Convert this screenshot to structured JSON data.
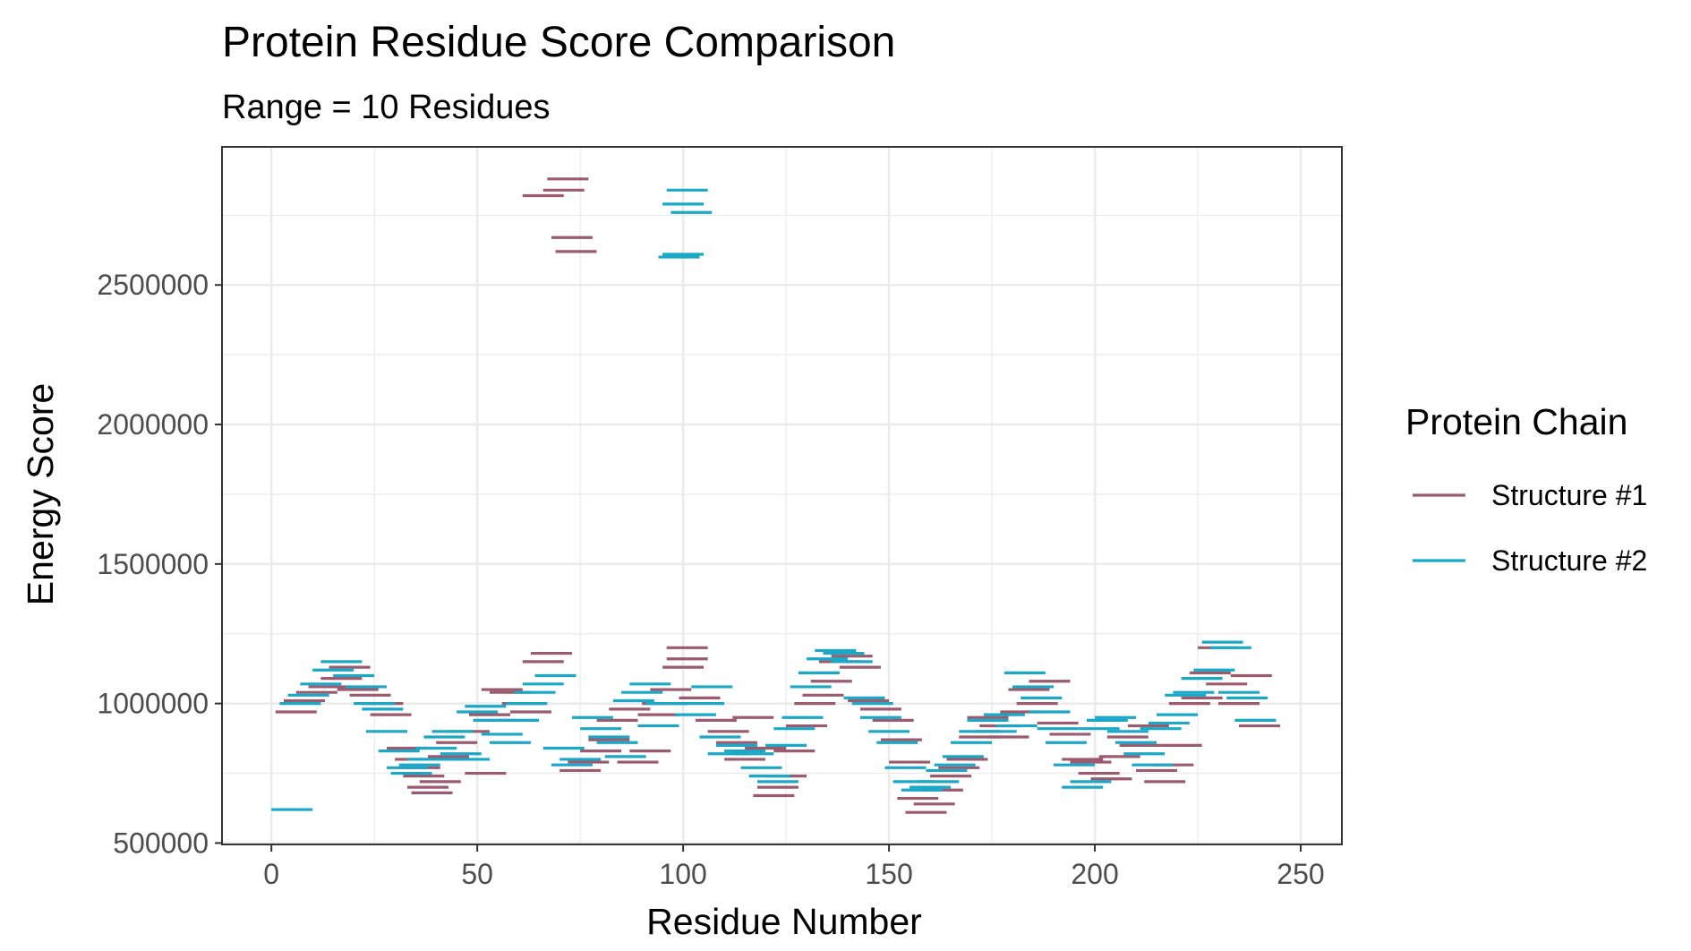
{
  "chart_data": {
    "type": "segment",
    "title": "Protein Residue Score Comparison",
    "subtitle": "Range = 10 Residues",
    "xlabel": "Residue Number",
    "ylabel": "Energy Score",
    "xlim": [
      -12,
      260
    ],
    "ylim": [
      495000,
      2995000
    ],
    "xticks": [
      0,
      50,
      100,
      150,
      200,
      250
    ],
    "xtick_labels": [
      "0",
      "50",
      "100",
      "150",
      "200",
      "250"
    ],
    "yticks": [
      500000,
      1000000,
      1500000,
      2000000,
      2500000
    ],
    "ytick_labels": [
      "500000",
      "1000000",
      "1500000",
      "2000000",
      "2500000"
    ],
    "grid": true,
    "legend": {
      "title": "Protein Chain",
      "position": "right"
    },
    "series": [
      {
        "name": "Structure #1",
        "color": "#9b5a6e",
        "segments": [
          [
            1,
            11,
            970000
          ],
          [
            3,
            13,
            1010000
          ],
          [
            6,
            16,
            1040000
          ],
          [
            9,
            19,
            1060000
          ],
          [
            12,
            22,
            1090000
          ],
          [
            14,
            24,
            1130000
          ],
          [
            16,
            26,
            1050000
          ],
          [
            19,
            29,
            1030000
          ],
          [
            22,
            32,
            1000000
          ],
          [
            24,
            34,
            960000
          ],
          [
            28,
            38,
            840000
          ],
          [
            30,
            40,
            800000
          ],
          [
            31,
            41,
            770000
          ],
          [
            32,
            42,
            740000
          ],
          [
            33,
            43,
            700000
          ],
          [
            34,
            44,
            680000
          ],
          [
            36,
            46,
            720000
          ],
          [
            38,
            48,
            810000
          ],
          [
            40,
            50,
            860000
          ],
          [
            43,
            53,
            900000
          ],
          [
            47,
            57,
            750000
          ],
          [
            48,
            58,
            960000
          ],
          [
            51,
            61,
            1050000
          ],
          [
            53,
            63,
            1040000
          ],
          [
            56,
            66,
            1000000
          ],
          [
            58,
            68,
            970000
          ],
          [
            61,
            71,
            1150000
          ],
          [
            63,
            73,
            1180000
          ],
          [
            61,
            71,
            2820000
          ],
          [
            66,
            76,
            2840000
          ],
          [
            67,
            77,
            2880000
          ],
          [
            68,
            78,
            2670000
          ],
          [
            69,
            79,
            2620000
          ],
          [
            70,
            80,
            760000
          ],
          [
            72,
            82,
            790000
          ],
          [
            75,
            85,
            830000
          ],
          [
            77,
            87,
            870000
          ],
          [
            79,
            89,
            940000
          ],
          [
            82,
            92,
            980000
          ],
          [
            84,
            94,
            790000
          ],
          [
            87,
            97,
            830000
          ],
          [
            89,
            99,
            960000
          ],
          [
            90,
            100,
            1000000
          ],
          [
            92,
            102,
            1050000
          ],
          [
            95,
            105,
            1130000
          ],
          [
            96,
            106,
            1160000
          ],
          [
            96,
            106,
            1200000
          ],
          [
            99,
            109,
            1020000
          ],
          [
            103,
            113,
            940000
          ],
          [
            106,
            116,
            900000
          ],
          [
            108,
            118,
            860000
          ],
          [
            110,
            120,
            800000
          ],
          [
            112,
            122,
            950000
          ],
          [
            115,
            125,
            840000
          ],
          [
            117,
            127,
            670000
          ],
          [
            118,
            128,
            700000
          ],
          [
            120,
            130,
            740000
          ],
          [
            122,
            132,
            830000
          ],
          [
            125,
            135,
            920000
          ],
          [
            127,
            137,
            1000000
          ],
          [
            129,
            139,
            1030000
          ],
          [
            131,
            141,
            1080000
          ],
          [
            133,
            143,
            1150000
          ],
          [
            136,
            146,
            1170000
          ],
          [
            138,
            148,
            1130000
          ],
          [
            140,
            150,
            1010000
          ],
          [
            143,
            153,
            980000
          ],
          [
            146,
            156,
            940000
          ],
          [
            148,
            158,
            870000
          ],
          [
            150,
            160,
            790000
          ],
          [
            152,
            162,
            660000
          ],
          [
            154,
            164,
            610000
          ],
          [
            156,
            166,
            640000
          ],
          [
            158,
            168,
            690000
          ],
          [
            160,
            170,
            740000
          ],
          [
            162,
            172,
            770000
          ],
          [
            164,
            174,
            800000
          ],
          [
            167,
            177,
            880000
          ],
          [
            169,
            179,
            950000
          ],
          [
            172,
            182,
            920000
          ],
          [
            174,
            184,
            880000
          ],
          [
            177,
            187,
            970000
          ],
          [
            179,
            189,
            1050000
          ],
          [
            181,
            191,
            1000000
          ],
          [
            184,
            194,
            1080000
          ],
          [
            186,
            196,
            930000
          ],
          [
            189,
            199,
            890000
          ],
          [
            192,
            202,
            800000
          ],
          [
            194,
            204,
            790000
          ],
          [
            196,
            206,
            750000
          ],
          [
            199,
            209,
            730000
          ],
          [
            201,
            211,
            810000
          ],
          [
            203,
            213,
            880000
          ],
          [
            206,
            216,
            850000
          ],
          [
            208,
            218,
            920000
          ],
          [
            210,
            220,
            760000
          ],
          [
            212,
            222,
            720000
          ],
          [
            214,
            224,
            780000
          ],
          [
            216,
            226,
            850000
          ],
          [
            218,
            228,
            1000000
          ],
          [
            221,
            231,
            1020000
          ],
          [
            223,
            233,
            1110000
          ],
          [
            225,
            235,
            1200000
          ],
          [
            227,
            237,
            1070000
          ],
          [
            230,
            240,
            1000000
          ],
          [
            233,
            243,
            1100000
          ],
          [
            235,
            245,
            920000
          ]
        ]
      },
      {
        "name": "Structure #2",
        "color": "#1aa8c6",
        "segments": [
          [
            0,
            10,
            620000
          ],
          [
            2,
            12,
            1000000
          ],
          [
            4,
            14,
            1030000
          ],
          [
            7,
            17,
            1070000
          ],
          [
            10,
            20,
            1120000
          ],
          [
            12,
            22,
            1150000
          ],
          [
            15,
            25,
            1100000
          ],
          [
            18,
            28,
            1060000
          ],
          [
            20,
            30,
            1000000
          ],
          [
            22,
            32,
            980000
          ],
          [
            23,
            33,
            900000
          ],
          [
            26,
            36,
            830000
          ],
          [
            28,
            38,
            770000
          ],
          [
            29,
            39,
            750000
          ],
          [
            31,
            41,
            780000
          ],
          [
            33,
            43,
            800000
          ],
          [
            35,
            45,
            840000
          ],
          [
            37,
            47,
            880000
          ],
          [
            39,
            49,
            900000
          ],
          [
            41,
            51,
            820000
          ],
          [
            43,
            53,
            800000
          ],
          [
            45,
            55,
            970000
          ],
          [
            47,
            57,
            990000
          ],
          [
            49,
            59,
            940000
          ],
          [
            51,
            61,
            890000
          ],
          [
            53,
            63,
            860000
          ],
          [
            55,
            65,
            940000
          ],
          [
            57,
            67,
            1000000
          ],
          [
            59,
            69,
            1040000
          ],
          [
            61,
            71,
            1070000
          ],
          [
            64,
            74,
            1100000
          ],
          [
            66,
            76,
            840000
          ],
          [
            68,
            78,
            780000
          ],
          [
            70,
            80,
            800000
          ],
          [
            73,
            83,
            950000
          ],
          [
            75,
            85,
            910000
          ],
          [
            77,
            87,
            880000
          ],
          [
            79,
            89,
            860000
          ],
          [
            81,
            91,
            810000
          ],
          [
            83,
            93,
            1010000
          ],
          [
            85,
            95,
            1040000
          ],
          [
            87,
            97,
            1070000
          ],
          [
            89,
            99,
            920000
          ],
          [
            91,
            101,
            1000000
          ],
          [
            94,
            104,
            2600000
          ],
          [
            95,
            105,
            2610000
          ],
          [
            95,
            105,
            2790000
          ],
          [
            96,
            106,
            2840000
          ],
          [
            97,
            107,
            2760000
          ],
          [
            98,
            108,
            960000
          ],
          [
            100,
            110,
            1000000
          ],
          [
            102,
            112,
            1060000
          ],
          [
            104,
            114,
            880000
          ],
          [
            106,
            116,
            820000
          ],
          [
            108,
            118,
            850000
          ],
          [
            110,
            120,
            830000
          ],
          [
            112,
            122,
            820000
          ],
          [
            114,
            124,
            770000
          ],
          [
            116,
            126,
            740000
          ],
          [
            118,
            128,
            720000
          ],
          [
            120,
            130,
            850000
          ],
          [
            122,
            132,
            910000
          ],
          [
            124,
            134,
            950000
          ],
          [
            126,
            136,
            1060000
          ],
          [
            128,
            138,
            1110000
          ],
          [
            130,
            140,
            1160000
          ],
          [
            132,
            142,
            1190000
          ],
          [
            134,
            144,
            1180000
          ],
          [
            136,
            146,
            1150000
          ],
          [
            139,
            149,
            1020000
          ],
          [
            141,
            151,
            1000000
          ],
          [
            143,
            153,
            950000
          ],
          [
            145,
            155,
            900000
          ],
          [
            147,
            157,
            860000
          ],
          [
            149,
            159,
            770000
          ],
          [
            151,
            161,
            720000
          ],
          [
            153,
            163,
            690000
          ],
          [
            155,
            165,
            700000
          ],
          [
            157,
            167,
            720000
          ],
          [
            159,
            169,
            760000
          ],
          [
            161,
            171,
            780000
          ],
          [
            163,
            173,
            810000
          ],
          [
            165,
            175,
            860000
          ],
          [
            167,
            177,
            900000
          ],
          [
            169,
            179,
            940000
          ],
          [
            171,
            181,
            900000
          ],
          [
            173,
            183,
            960000
          ],
          [
            176,
            186,
            920000
          ],
          [
            178,
            188,
            1110000
          ],
          [
            180,
            190,
            1060000
          ],
          [
            182,
            192,
            1020000
          ],
          [
            184,
            194,
            970000
          ],
          [
            186,
            196,
            910000
          ],
          [
            188,
            198,
            860000
          ],
          [
            190,
            200,
            780000
          ],
          [
            192,
            202,
            700000
          ],
          [
            194,
            204,
            720000
          ],
          [
            196,
            206,
            910000
          ],
          [
            198,
            208,
            940000
          ],
          [
            200,
            210,
            950000
          ],
          [
            203,
            213,
            900000
          ],
          [
            205,
            215,
            860000
          ],
          [
            207,
            217,
            820000
          ],
          [
            209,
            219,
            780000
          ],
          [
            211,
            221,
            910000
          ],
          [
            213,
            223,
            930000
          ],
          [
            215,
            225,
            960000
          ],
          [
            217,
            227,
            1030000
          ],
          [
            219,
            229,
            1040000
          ],
          [
            221,
            231,
            1090000
          ],
          [
            224,
            234,
            1120000
          ],
          [
            226,
            236,
            1220000
          ],
          [
            228,
            238,
            1200000
          ],
          [
            230,
            240,
            1040000
          ],
          [
            232,
            242,
            1020000
          ],
          [
            234,
            244,
            940000
          ]
        ]
      }
    ]
  }
}
